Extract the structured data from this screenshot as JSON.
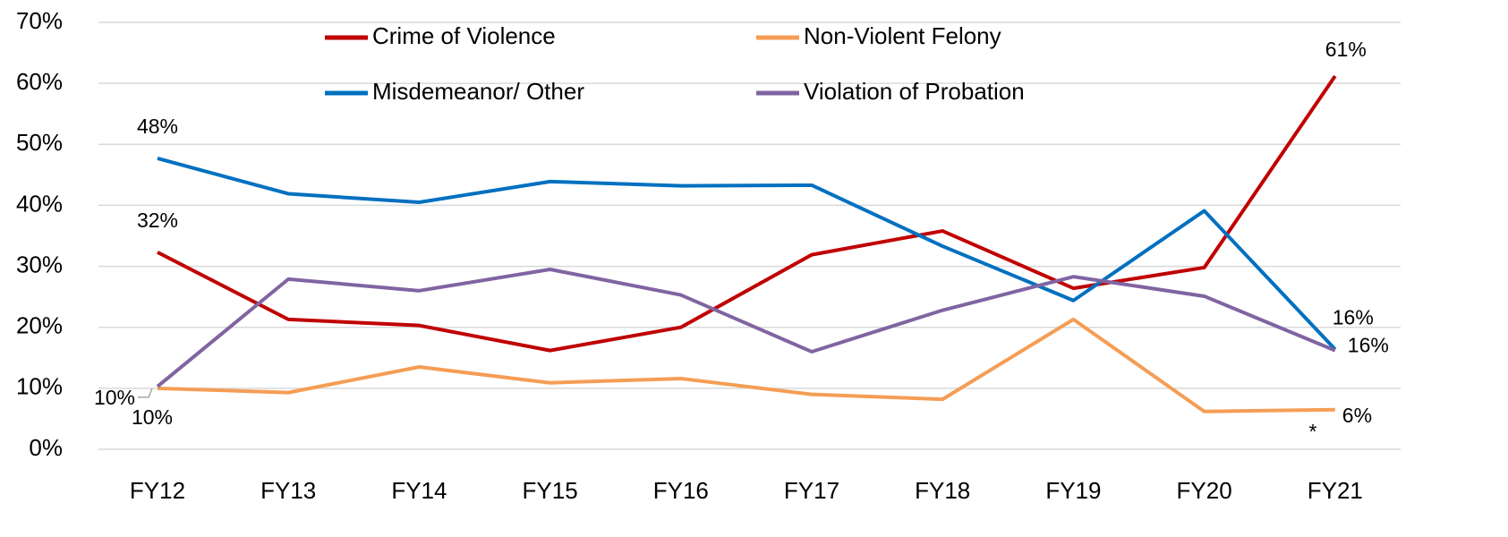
{
  "chart_data": {
    "type": "line",
    "categories": [
      "FY12",
      "FY13",
      "FY14",
      "FY15",
      "FY16",
      "FY17",
      "FY18",
      "FY19",
      "FY20",
      "FY21"
    ],
    "series": [
      {
        "name": "Crime of Violence",
        "color": "#c00000",
        "values": [
          32.3,
          21.3,
          20.3,
          16.2,
          20.0,
          31.9,
          35.8,
          26.4,
          29.8,
          61.2
        ],
        "value_labels": [
          "32%",
          null,
          null,
          null,
          null,
          null,
          null,
          null,
          null,
          "61%"
        ]
      },
      {
        "name": "Non-Violent Felony",
        "color": "#f59d55",
        "values": [
          10.0,
          9.3,
          13.5,
          10.9,
          11.6,
          9.0,
          8.2,
          21.3,
          6.2,
          6.5
        ],
        "value_labels": [
          "10%",
          null,
          null,
          null,
          null,
          null,
          null,
          null,
          null,
          "6%"
        ]
      },
      {
        "name": "Misdemeanor/ Other",
        "color": "#0070c0",
        "values": [
          47.7,
          41.9,
          40.5,
          43.9,
          43.2,
          43.3,
          33.3,
          24.4,
          39.1,
          16.4
        ],
        "value_labels": [
          "48%",
          null,
          null,
          null,
          null,
          null,
          null,
          null,
          null,
          "16%"
        ]
      },
      {
        "name": "Violation of Probation",
        "color": "#8064a2",
        "values": [
          10.3,
          27.9,
          26.0,
          29.5,
          25.3,
          16.0,
          22.8,
          28.3,
          25.1,
          16.2
        ],
        "value_labels": [
          "10%",
          null,
          null,
          null,
          null,
          null,
          null,
          null,
          null,
          "16%"
        ]
      }
    ],
    "ylim": [
      0,
      70
    ],
    "yticks": [
      {
        "value": 0,
        "label": "0%"
      },
      {
        "value": 10,
        "label": "10%"
      },
      {
        "value": 20,
        "label": "20%"
      },
      {
        "value": 30,
        "label": "30%"
      },
      {
        "value": 40,
        "label": "40%"
      },
      {
        "value": 50,
        "label": "50%"
      },
      {
        "value": 60,
        "label": "60%"
      },
      {
        "value": 70,
        "label": "70%"
      }
    ],
    "grid": true,
    "legend": "top",
    "annotation": "*"
  }
}
